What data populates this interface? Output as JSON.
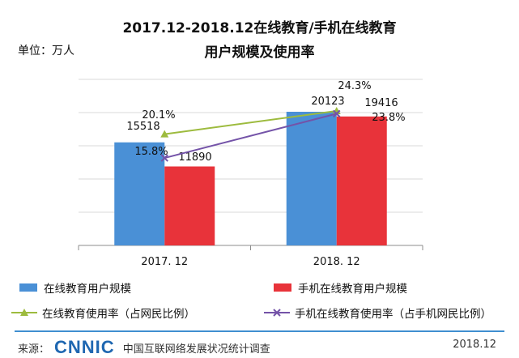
{
  "header": {
    "title_line1": "2017.12-2018.12在线教育/手机在线教育",
    "title_line2": "用户规模及使用率",
    "unit": "单位：万人"
  },
  "footer": {
    "source_label": "来源：",
    "logo_text": "CNNIC",
    "source_text": "中国互联网络发展状况统计调查",
    "date": "2018.12"
  },
  "colors": {
    "bar_online": "#4a90d6",
    "bar_mobile": "#e8333a",
    "line_online": "#9dbb3e",
    "line_mobile": "#7453a8",
    "grid": "#d9d9d9"
  },
  "chart_data": {
    "type": "bar",
    "categories": [
      "2017. 12",
      "2018. 12"
    ],
    "series": [
      {
        "name": "在线教育用户规模",
        "kind": "bar",
        "values": [
          15518,
          11890
        ],
        "labels": [
          "15518",
          "11890"
        ]
      },
      {
        "name": "手机在线教育用户规模",
        "kind": "bar",
        "values": [
          20123,
          19416
        ],
        "labels": [
          "20123",
          "19416"
        ]
      },
      {
        "name": "在线教育使用率（占网民比例）",
        "kind": "line",
        "values": [
          20.1,
          24.3
        ],
        "labels": [
          "20.1%",
          "24.3%"
        ]
      },
      {
        "name": "手机在线教育使用率（占手机网民比例）",
        "kind": "line",
        "values": [
          15.8,
          23.8
        ],
        "labels": [
          "15.8%",
          "23.8%"
        ]
      }
    ],
    "bar_ylim": [
      0,
      25000
    ],
    "line_ylim": [
      0,
      30
    ],
    "grid": true,
    "legend_position": "bottom"
  }
}
